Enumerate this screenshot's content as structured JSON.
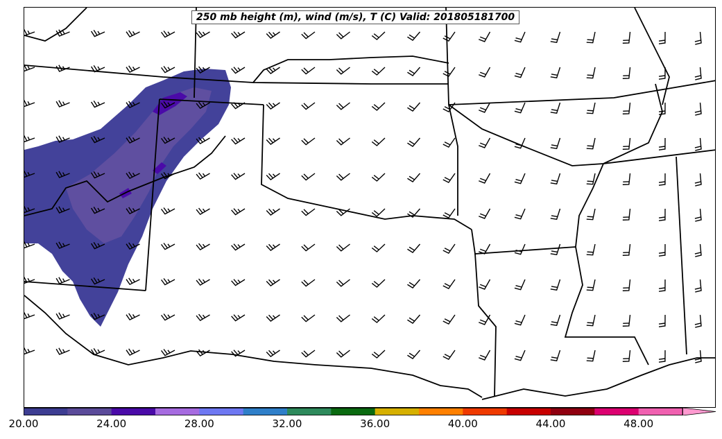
{
  "title": "250 mb height (m), wind (m/s), T (C) Valid: 201805181700",
  "colorbar": {
    "colors": [
      "#3d3d92",
      "#5b4b9a",
      "#4a0aa8",
      "#a66be0",
      "#6e78f2",
      "#2f7fc9",
      "#2e8a5c",
      "#0a6a10",
      "#d6b000",
      "#ff8000",
      "#ef3a00",
      "#c80000",
      "#900010",
      "#dc0070",
      "#f060b0",
      "#ff9ad0"
    ],
    "tick_labels": [
      "20.00",
      "24.00",
      "28.00",
      "32.00",
      "36.00",
      "40.00",
      "44.00",
      "48.00"
    ]
  },
  "chart_data": {
    "type": "map",
    "title": "250 mb height (m), wind (m/s), T (C) Valid: 201805181700",
    "colorbar_range": [
      20,
      50
    ],
    "colorbar_step": 2,
    "shaded_field_colors_present": [
      "#3d3d92",
      "#5b4b9a",
      "#4a0aa8"
    ],
    "wind_barbs": "southwesterly to westerly barbs across domain"
  }
}
